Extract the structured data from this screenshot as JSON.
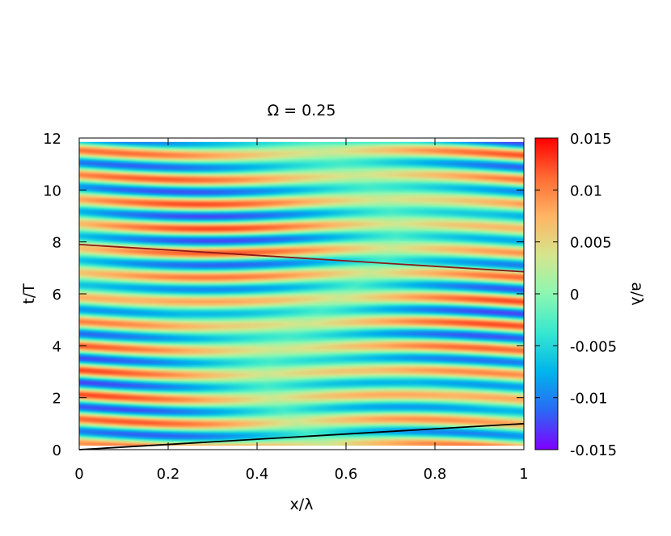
{
  "chart_data": {
    "type": "heatmap",
    "title": "Ω = 0.25",
    "xlabel": "x/λ",
    "ylabel": "t/T",
    "colorbar_label": "a/λ",
    "xlim": [
      0,
      1
    ],
    "ylim": [
      0,
      12
    ],
    "clim": [
      -0.015,
      0.015
    ],
    "x_ticks": [
      {
        "value": 0,
        "label": "0"
      },
      {
        "value": 0.2,
        "label": "0.2"
      },
      {
        "value": 0.4,
        "label": "0.4"
      },
      {
        "value": 0.6,
        "label": "0.6"
      },
      {
        "value": 0.8,
        "label": "0.8"
      },
      {
        "value": 1,
        "label": "1"
      }
    ],
    "y_ticks": [
      {
        "value": 0,
        "label": "0"
      },
      {
        "value": 2,
        "label": "2"
      },
      {
        "value": 4,
        "label": "4"
      },
      {
        "value": 6,
        "label": "6"
      },
      {
        "value": 8,
        "label": "8"
      },
      {
        "value": 10,
        "label": "10"
      },
      {
        "value": 12,
        "label": "12"
      }
    ],
    "colorbar_ticks": [
      {
        "value": 0.015,
        "label": "0.015"
      },
      {
        "value": 0.01,
        "label": "0.01"
      },
      {
        "value": 0.005,
        "label": "0.005"
      },
      {
        "value": 0,
        "label": "0"
      },
      {
        "value": -0.005,
        "label": "-0.005"
      },
      {
        "value": -0.01,
        "label": "-0.01"
      },
      {
        "value": -0.015,
        "label": "-0.015"
      }
    ],
    "colormap": [
      "#7f00ff",
      "#2a68f5",
      "#00b5eb",
      "#36e8cf",
      "#8cf7b1",
      "#d6e58c",
      "#ffb463",
      "#ff6a33",
      "#ff0000"
    ],
    "lines": [
      {
        "color": "#000000",
        "points": [
          [
            0,
            0
          ],
          [
            1,
            1
          ]
        ]
      },
      {
        "color": "#8b1a1a",
        "points": [
          [
            0,
            7.9
          ],
          [
            1,
            6.85
          ]
        ]
      }
    ],
    "grid": false
  }
}
